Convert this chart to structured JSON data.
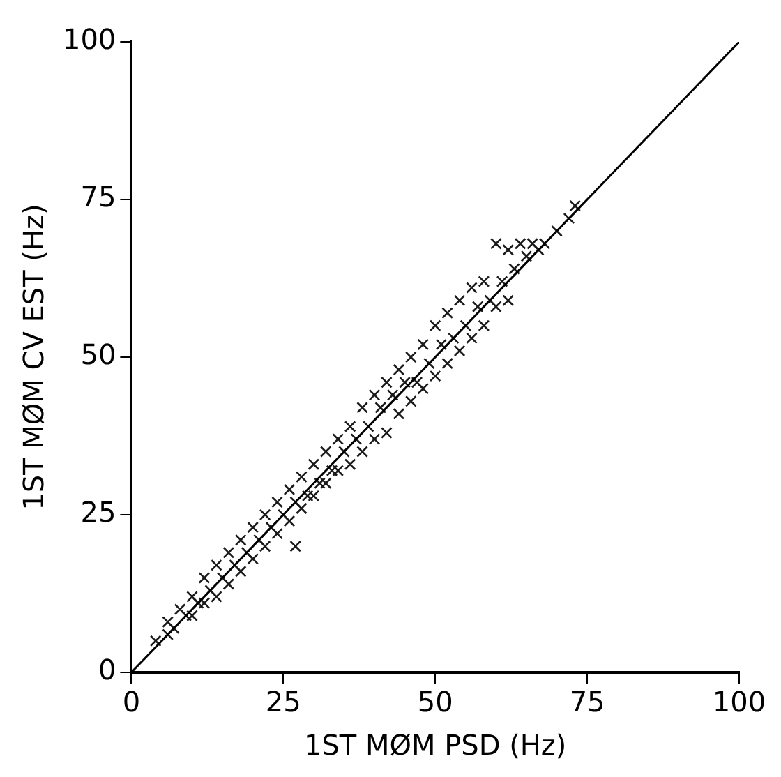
{
  "chart_data": {
    "type": "scatter",
    "xlabel": "1ST MØM PSD (Hz)",
    "ylabel": "1ST MØM CV EST (Hz)",
    "xlim": [
      0,
      100
    ],
    "ylim": [
      0,
      100
    ],
    "xticks": [
      0,
      25,
      50,
      75,
      100
    ],
    "yticks": [
      0,
      25,
      50,
      75,
      100
    ],
    "grid": false,
    "legend": false,
    "marker": "cross",
    "series": [
      {
        "color": "#1a1a1a",
        "x": [
          4,
          6,
          6,
          7,
          8,
          9,
          10,
          10,
          11,
          12,
          12,
          13,
          14,
          14,
          15,
          16,
          16,
          17,
          18,
          18,
          19,
          20,
          20,
          21,
          22,
          22,
          23,
          24,
          24,
          25,
          26,
          26,
          27,
          27,
          28,
          28,
          29,
          30,
          30,
          31,
          32,
          32,
          33,
          34,
          34,
          35,
          36,
          36,
          37,
          38,
          38,
          39,
          40,
          40,
          41,
          42,
          42,
          43,
          44,
          44,
          45,
          46,
          46,
          47,
          48,
          48,
          49,
          50,
          50,
          51,
          52,
          52,
          53,
          54,
          54,
          55,
          56,
          56,
          57,
          58,
          58,
          59,
          60,
          60,
          61,
          62,
          62,
          63,
          64,
          65,
          66,
          67,
          68,
          70,
          72,
          73
        ],
        "values": [
          5,
          8,
          6,
          7,
          10,
          9,
          12,
          9,
          11,
          15,
          11,
          13,
          17,
          12,
          15,
          19,
          14,
          17,
          21,
          16,
          19,
          23,
          18,
          21,
          25,
          20,
          23,
          27,
          22,
          25,
          29,
          24,
          20,
          27,
          31,
          26,
          28,
          33,
          28,
          30,
          35,
          30,
          32,
          37,
          32,
          35,
          39,
          33,
          37,
          42,
          35,
          39,
          44,
          37,
          42,
          46,
          38,
          44,
          48,
          41,
          46,
          50,
          43,
          46,
          52,
          45,
          49,
          55,
          47,
          52,
          57,
          49,
          53,
          59,
          51,
          55,
          61,
          53,
          58,
          62,
          55,
          59,
          68,
          58,
          62,
          67,
          59,
          64,
          68,
          66,
          68,
          67,
          68,
          70,
          72,
          74
        ]
      },
      {
        "type": "line",
        "color": "#000000",
        "marker": "none",
        "x": [
          0,
          100
        ],
        "values": [
          0,
          100
        ]
      }
    ]
  }
}
